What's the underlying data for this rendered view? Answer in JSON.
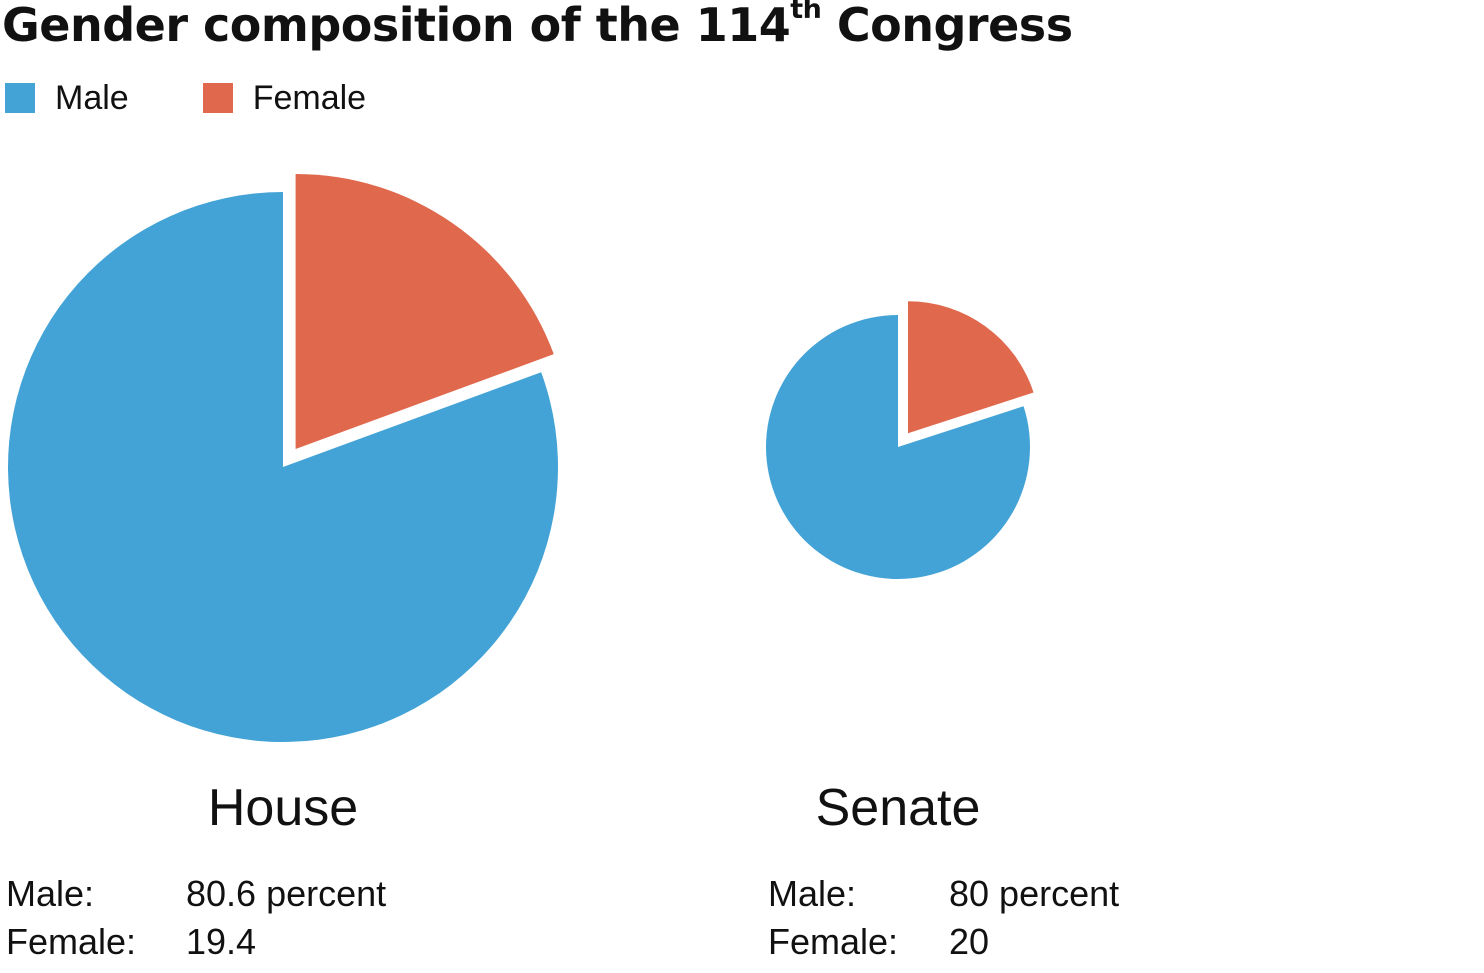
{
  "title": {
    "main": "Gender composition of the 114",
    "superscript": "th",
    "suffix": "Congress"
  },
  "legend": [
    {
      "label": "Male",
      "color": "#43a3d6"
    },
    {
      "label": "Female",
      "color": "#e0684c"
    }
  ],
  "colors": {
    "male": "#43a3d6",
    "female": "#e0684c",
    "background": "#ffffff",
    "text": "#111111"
  },
  "chart_data": [
    {
      "type": "pie",
      "title": "House",
      "categories": [
        "Male",
        "Female"
      ],
      "values": [
        80.6,
        19.4
      ],
      "colors": [
        "#43a3d6",
        "#e0684c"
      ],
      "exploded": "Female",
      "labels": [
        {
          "label": "Male:",
          "value": "80.6 percent"
        },
        {
          "label": "Female:",
          "value": "19.4"
        }
      ]
    },
    {
      "type": "pie",
      "title": "Senate",
      "categories": [
        "Male",
        "Female"
      ],
      "values": [
        80,
        20
      ],
      "colors": [
        "#43a3d6",
        "#e0684c"
      ],
      "exploded": "Female",
      "labels": [
        {
          "label": "Male:",
          "value": "80 percent"
        },
        {
          "label": "Female:",
          "value": "20"
        }
      ]
    }
  ]
}
